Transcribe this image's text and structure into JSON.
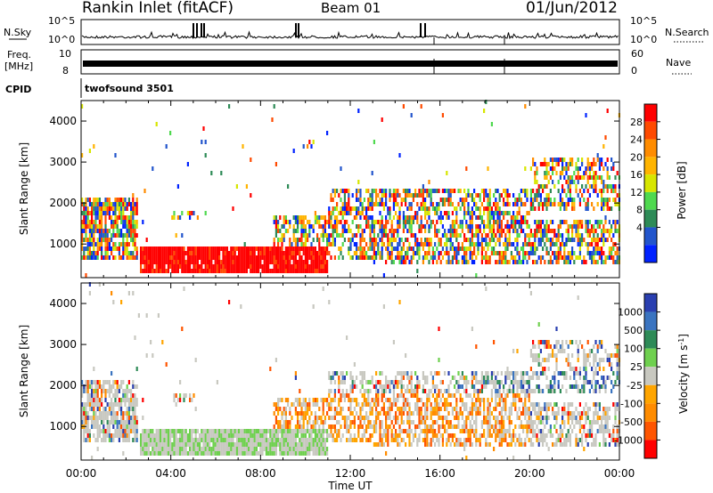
{
  "header": {
    "title": "Rankin Inlet (fitACF)",
    "beam": "Beam 01",
    "date": "01/Jun/2012"
  },
  "strips": {
    "nsky_label": "N.Sky",
    "nsky_ticks": [
      "10^5",
      "10^0"
    ],
    "nsearch_label": "N.Search",
    "nsearch_ticks": [
      "10^5",
      "10^0"
    ],
    "freq_label": "Freq.",
    "freq_unit": "[MHz]",
    "freq_ticks": [
      "10",
      "8"
    ],
    "nave_label": "Nave",
    "nave_ticks": [
      "60",
      "0"
    ],
    "cpid_label": "CPID",
    "cpid_value": "twofsound 3501"
  },
  "axes": {
    "xlabel": "Time UT",
    "ylabel": "Slant Range [km]",
    "x_ticks": [
      "00:00",
      "04:00",
      "08:00",
      "12:00",
      "16:00",
      "20:00",
      "00:00"
    ],
    "y_ticks": [
      1000,
      2000,
      3000,
      4000
    ]
  },
  "chart_data": [
    {
      "type": "heatmap",
      "name": "power",
      "xlabel": "Time UT",
      "ylabel": "Slant Range [km]",
      "xlim": [
        0,
        24
      ],
      "ylim": [
        180,
        4500
      ],
      "colorbar": {
        "label": "Power [dB]",
        "ticks": [
          "28",
          "24",
          "20",
          "16",
          "12",
          "8",
          "4"
        ],
        "colors": [
          "#ff0000",
          "#ff4a00",
          "#ff8c00",
          "#ffb400",
          "#d7e600",
          "#4fd94f",
          "#2e8b57",
          "#2255cc",
          "#0022ff"
        ]
      }
    },
    {
      "type": "heatmap",
      "name": "velocity",
      "xlabel": "Time UT",
      "ylabel": "Slant Range [km]",
      "xlim": [
        0,
        24
      ],
      "ylim": [
        180,
        4500
      ],
      "colorbar": {
        "label": "Velocity [m s",
        "label_sup": "-1",
        "ticks": [
          "1000",
          "500",
          "100",
          "25",
          "-25",
          "-100",
          "-500",
          "-1000"
        ],
        "colors": [
          "#2a3fb0",
          "#3a74c0",
          "#2e8b57",
          "#6fd04f",
          "#c8c8c0",
          "#ffa500",
          "#ff8c00",
          "#ff5500",
          "#ff0000"
        ]
      }
    }
  ]
}
